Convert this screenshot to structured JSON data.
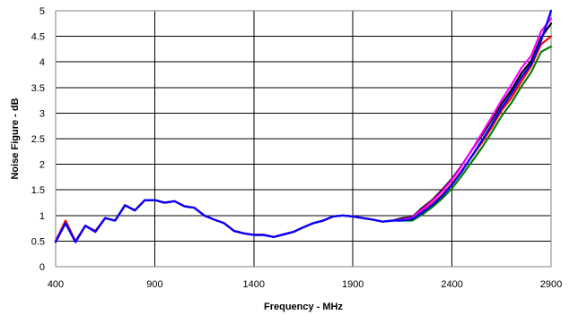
{
  "chart_data": {
    "type": "line",
    "title": "",
    "xlabel": "Frequency - MHz",
    "ylabel": "Noise Figure - dB",
    "xlim": [
      400,
      2900
    ],
    "ylim": [
      0,
      5
    ],
    "x_ticks": [
      400,
      900,
      1400,
      1900,
      2400,
      2900
    ],
    "y_ticks": [
      0,
      0.5,
      1,
      1.5,
      2,
      2.5,
      3,
      3.5,
      4,
      4.5,
      5
    ],
    "grid": true,
    "legend": "none",
    "x": [
      400,
      450,
      500,
      550,
      600,
      650,
      700,
      750,
      800,
      850,
      900,
      950,
      1000,
      1050,
      1100,
      1150,
      1200,
      1250,
      1300,
      1350,
      1400,
      1450,
      1500,
      1550,
      1600,
      1650,
      1700,
      1750,
      1800,
      1850,
      1900,
      1950,
      2000,
      2050,
      2100,
      2150,
      2200,
      2250,
      2300,
      2350,
      2400,
      2450,
      2500,
      2550,
      2600,
      2650,
      2700,
      2750,
      2800,
      2850,
      2900
    ],
    "series": [
      {
        "color": "#ff0000",
        "values": [
          0.5,
          0.9,
          0.5,
          0.8,
          0.7,
          0.95,
          0.9,
          1.2,
          1.1,
          1.3,
          1.3,
          1.25,
          1.28,
          1.18,
          1.15,
          1.0,
          0.92,
          0.85,
          0.7,
          0.65,
          0.62,
          0.62,
          0.58,
          0.63,
          0.68,
          0.77,
          0.85,
          0.9,
          0.98,
          1.0,
          0.98,
          0.95,
          0.92,
          0.88,
          0.9,
          0.92,
          0.95,
          1.08,
          1.22,
          1.4,
          1.62,
          1.88,
          2.15,
          2.42,
          2.72,
          3.05,
          3.3,
          3.62,
          3.92,
          4.35,
          4.5
        ]
      },
      {
        "color": "#008000",
        "values": [
          0.5,
          0.85,
          0.48,
          0.8,
          0.68,
          0.95,
          0.9,
          1.2,
          1.1,
          1.3,
          1.3,
          1.25,
          1.28,
          1.18,
          1.15,
          1.0,
          0.92,
          0.85,
          0.7,
          0.65,
          0.62,
          0.62,
          0.58,
          0.63,
          0.68,
          0.77,
          0.85,
          0.9,
          0.98,
          1.0,
          0.98,
          0.95,
          0.92,
          0.88,
          0.9,
          0.9,
          0.9,
          1.02,
          1.16,
          1.33,
          1.53,
          1.78,
          2.05,
          2.32,
          2.62,
          2.94,
          3.2,
          3.52,
          3.8,
          4.2,
          4.3
        ]
      },
      {
        "color": "#000000",
        "values": [
          0.5,
          0.85,
          0.48,
          0.8,
          0.68,
          0.95,
          0.9,
          1.2,
          1.1,
          1.3,
          1.3,
          1.25,
          1.28,
          1.18,
          1.15,
          1.0,
          0.92,
          0.85,
          0.7,
          0.65,
          0.62,
          0.62,
          0.58,
          0.63,
          0.68,
          0.77,
          0.85,
          0.9,
          0.98,
          1.0,
          0.98,
          0.95,
          0.92,
          0.88,
          0.9,
          0.95,
          0.97,
          1.15,
          1.3,
          1.5,
          1.72,
          1.98,
          2.28,
          2.56,
          2.86,
          3.18,
          3.45,
          3.78,
          4.02,
          4.48,
          4.75
        ]
      },
      {
        "color": "#ff00ff",
        "values": [
          0.5,
          0.85,
          0.48,
          0.8,
          0.68,
          0.95,
          0.9,
          1.2,
          1.1,
          1.3,
          1.3,
          1.25,
          1.28,
          1.18,
          1.15,
          1.0,
          0.92,
          0.85,
          0.7,
          0.65,
          0.62,
          0.62,
          0.58,
          0.63,
          0.68,
          0.77,
          0.85,
          0.9,
          0.98,
          1.0,
          0.98,
          0.95,
          0.92,
          0.88,
          0.9,
          0.92,
          0.96,
          1.12,
          1.28,
          1.47,
          1.7,
          1.97,
          2.28,
          2.6,
          2.92,
          3.25,
          3.55,
          3.88,
          4.12,
          4.6,
          4.85
        ]
      },
      {
        "color": "#0000ff",
        "values": [
          0.48,
          0.85,
          0.48,
          0.8,
          0.68,
          0.95,
          0.9,
          1.2,
          1.1,
          1.3,
          1.3,
          1.25,
          1.28,
          1.18,
          1.15,
          1.0,
          0.92,
          0.85,
          0.7,
          0.65,
          0.62,
          0.62,
          0.58,
          0.63,
          0.68,
          0.77,
          0.85,
          0.9,
          0.98,
          1.0,
          0.98,
          0.95,
          0.92,
          0.88,
          0.9,
          0.9,
          0.93,
          1.06,
          1.2,
          1.38,
          1.6,
          1.86,
          2.16,
          2.46,
          2.77,
          3.1,
          3.38,
          3.7,
          3.96,
          4.42,
          5.0
        ]
      }
    ]
  }
}
